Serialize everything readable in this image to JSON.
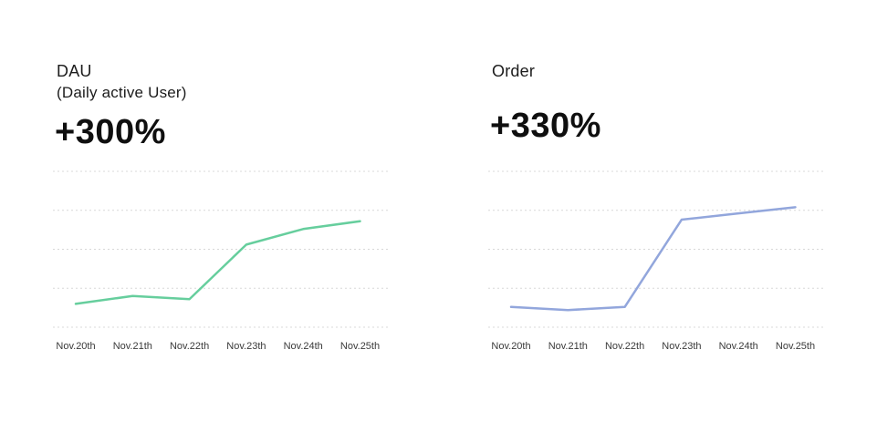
{
  "page": {
    "background_color": "#ffffff"
  },
  "chart_data": [
    {
      "type": "line",
      "title": "DAU",
      "subtitle": "(Daily active User)",
      "growth_label": "+300%",
      "line_color": "#66ce9d",
      "grid_color": "#d8d8d8",
      "label_color": "#3a3a3a",
      "categories": [
        "Nov.20th",
        "Nov.21th",
        "Nov.22th",
        "Nov.23th",
        "Nov.24th",
        "Nov.25th"
      ],
      "values": [
        15,
        20,
        18,
        53,
        63,
        68
      ],
      "ylim": [
        0,
        100
      ],
      "gridline_count": 5,
      "grid_style": "horizontal-dashed",
      "legend": "none",
      "xlabel": "",
      "ylabel": ""
    },
    {
      "type": "line",
      "title": "Order",
      "subtitle": "",
      "growth_label": "+330%",
      "line_color": "#92a6dc",
      "grid_color": "#d8d8d8",
      "label_color": "#3a3a3a",
      "categories": [
        "Nov.20th",
        "Nov.21th",
        "Nov.22th",
        "Nov.23th",
        "Nov.24th",
        "Nov.25th"
      ],
      "values": [
        13,
        11,
        13,
        69,
        73,
        77
      ],
      "ylim": [
        0,
        100
      ],
      "gridline_count": 5,
      "grid_style": "horizontal-dashed",
      "legend": "none",
      "xlabel": "",
      "ylabel": ""
    }
  ]
}
